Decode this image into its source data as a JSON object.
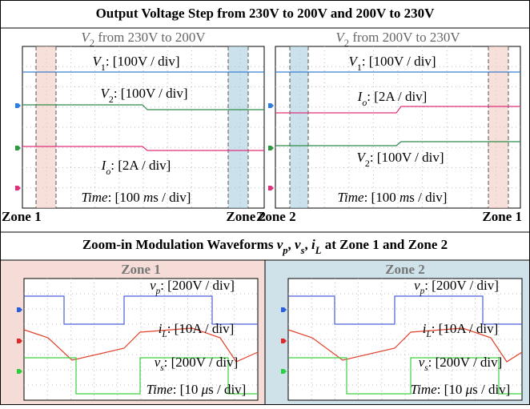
{
  "title": [
    {
      "text": "Output Voltage Step from 230V to 200V and 200V to 230V"
    }
  ],
  "panels": [
    {
      "heading": [
        {
          "text": "V",
          "style": "i"
        },
        {
          "text": "2",
          "style": "sub"
        },
        {
          "text": " from 230V to 200V"
        }
      ],
      "labels": [
        [
          {
            "text": "V",
            "style": "i"
          },
          {
            "text": "1",
            "style": "sub"
          },
          {
            "text": ": [100V / div]"
          }
        ],
        [
          {
            "text": "V",
            "style": "i"
          },
          {
            "text": "2",
            "style": "sub"
          },
          {
            "text": ": [100V / div]"
          }
        ],
        [
          {
            "text": "I",
            "style": "i"
          },
          {
            "text": "o",
            "style": "isub"
          },
          {
            "text": ": [2A / div]"
          }
        ],
        [
          {
            "text": "Time",
            "style": "i"
          },
          {
            "text": ": [100 "
          },
          {
            "text": "m",
            "style": "i"
          },
          {
            "text": "s / div]"
          }
        ]
      ],
      "zone_left": "Zone 1",
      "zone_right": "Zone 2"
    },
    {
      "heading": [
        {
          "text": "V",
          "style": "i"
        },
        {
          "text": "2",
          "style": "sub"
        },
        {
          "text": " from 200V to 230V"
        }
      ],
      "labels": [
        [
          {
            "text": "V",
            "style": "i"
          },
          {
            "text": "1",
            "style": "sub"
          },
          {
            "text": ": [100V / div]"
          }
        ],
        [
          {
            "text": "I",
            "style": "i"
          },
          {
            "text": "o",
            "style": "isub"
          },
          {
            "text": ": [2A / div]"
          }
        ],
        [
          {
            "text": "V",
            "style": "i"
          },
          {
            "text": "2",
            "style": "sub"
          },
          {
            "text": ": [100V / div]"
          }
        ],
        [
          {
            "text": "Time",
            "style": "i"
          },
          {
            "text": ": [100 "
          },
          {
            "text": "m",
            "style": "i"
          },
          {
            "text": "s / div]"
          }
        ]
      ],
      "zone_left": "Zone 2",
      "zone_right": "Zone 1"
    }
  ],
  "subtitle": [
    {
      "text": "Zoom-in Modulation Waveforms "
    },
    {
      "text": "v",
      "style": "i"
    },
    {
      "text": "p",
      "style": "isub"
    },
    {
      "text": ", "
    },
    {
      "text": "v",
      "style": "i"
    },
    {
      "text": "s",
      "style": "isub"
    },
    {
      "text": ", "
    },
    {
      "text": "i",
      "style": "i"
    },
    {
      "text": "L",
      "style": "isub"
    },
    {
      "text": " at Zone 1 and Zone 2"
    }
  ],
  "zooms": [
    {
      "heading": "Zone 1",
      "labels": [
        [
          {
            "text": "v",
            "style": "i"
          },
          {
            "text": "p",
            "style": "isub"
          },
          {
            "text": ": [200V / div]"
          }
        ],
        [
          {
            "text": "i",
            "style": "i"
          },
          {
            "text": "L",
            "style": "isub"
          },
          {
            "text": ": [10A / div]"
          }
        ],
        [
          {
            "text": "v",
            "style": "i"
          },
          {
            "text": "s",
            "style": "isub"
          },
          {
            "text": ": [200V / div]"
          }
        ],
        [
          {
            "text": "Time",
            "style": "i"
          },
          {
            "text": ": [10 "
          },
          {
            "text": "μ",
            "style": "i"
          },
          {
            "text": "s / div]"
          }
        ]
      ]
    },
    {
      "heading": "Zone 2",
      "labels": [
        [
          {
            "text": "v",
            "style": "i"
          },
          {
            "text": "p",
            "style": "isub"
          },
          {
            "text": ": [200V / div]"
          }
        ],
        [
          {
            "text": "i",
            "style": "i"
          },
          {
            "text": "L",
            "style": "isub"
          },
          {
            "text": ": [10A / div]"
          }
        ],
        [
          {
            "text": "v",
            "style": "i"
          },
          {
            "text": "s",
            "style": "isub"
          },
          {
            "text": ": [200V / div]"
          }
        ],
        [
          {
            "text": "Time",
            "style": "i"
          },
          {
            "text": ": [10 "
          },
          {
            "text": "μ",
            "style": "i"
          },
          {
            "text": "s / div]"
          }
        ]
      ]
    }
  ]
}
